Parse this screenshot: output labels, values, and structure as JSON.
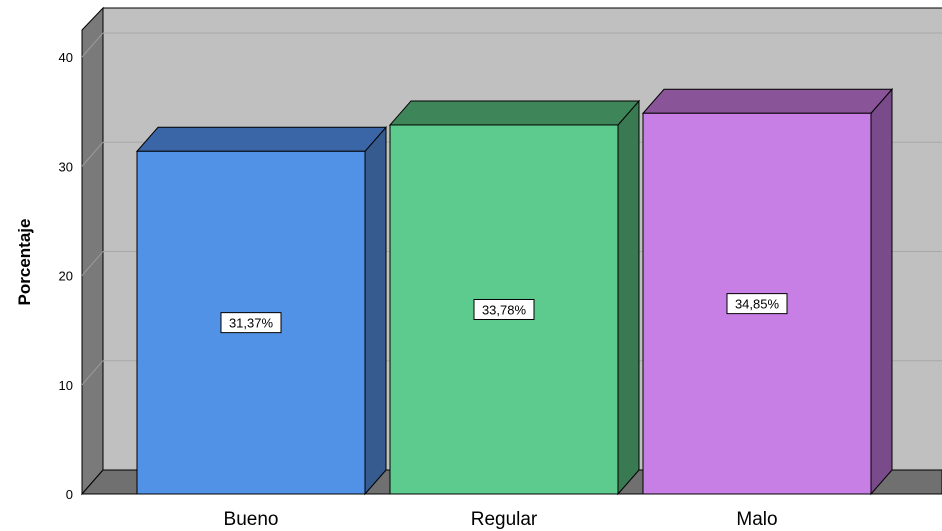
{
  "chart_data": {
    "type": "bar",
    "title": "",
    "xlabel": "",
    "ylabel": "Porcentaje",
    "ylim": [
      0,
      40
    ],
    "yticks": [
      "0",
      "10",
      "20",
      "30",
      "40"
    ],
    "categories": [
      "Bueno",
      "Regular",
      "Malo"
    ],
    "values": [
      31.37,
      33.78,
      34.85
    ],
    "data_labels": [
      "31,37%",
      "33,78%",
      "34,85%"
    ],
    "colors": [
      "#5292e6",
      "#5dcb8e",
      "#c87fe5"
    ],
    "side_colors": [
      "#365b8f",
      "#3a7a52",
      "#7a4b8a"
    ],
    "top_colors": [
      "#3a66a8",
      "#3e865a",
      "#8a5498"
    ],
    "wall_color": "#c0c0c0",
    "grid": true,
    "style": "3d-bar"
  }
}
